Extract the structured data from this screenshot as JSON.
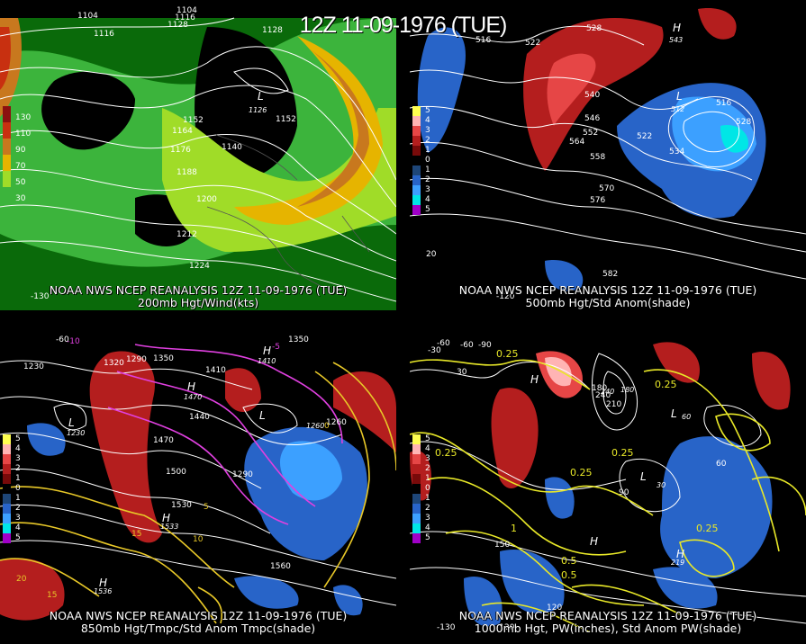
{
  "title": "12Z 11-09-1976 (TUE)",
  "panels": [
    {
      "id": "p200",
      "caption_line1": "NOAA NWS NCEP REANALYSIS 12Z 11-09-1976 (TUE)",
      "caption_line2": "200mb Hgt/Wind(kts)",
      "legend": [
        {
          "label": "130",
          "color": "#8b1010"
        },
        {
          "label": "110",
          "color": "#c83010"
        },
        {
          "label": "90",
          "color": "#c8781e"
        },
        {
          "label": "70",
          "color": "#e6b400"
        },
        {
          "label": "50",
          "color": "#a0dc28"
        },
        {
          "label": "30",
          "color": "#3cb43c"
        }
      ],
      "contour_labels": [
        "1104",
        "1116",
        "1128",
        "1140",
        "1152",
        "1164",
        "1176",
        "1188",
        "1200",
        "1212",
        "1224",
        "1104",
        "1116",
        "1128",
        "1152",
        "1128"
      ],
      "lows": [
        {
          "symbol": "L",
          "value": "1126"
        }
      ]
    },
    {
      "id": "p500",
      "caption_line1": "NOAA NWS NCEP REANALYSIS 12Z 11-09-1976 (TUE)",
      "caption_line2": "500mb Hgt/Std Anom(shade)",
      "legend": [
        {
          "label": "5",
          "color": "#ffff50"
        },
        {
          "label": "4",
          "color": "#ffb4b4"
        },
        {
          "label": "3",
          "color": "#e64646"
        },
        {
          "label": "2",
          "color": "#b41e1e"
        },
        {
          "label": "1",
          "color": "#780a0a"
        },
        {
          "label": "0",
          "color": "#000000"
        },
        {
          "label": "1",
          "color": "#1e4678"
        },
        {
          "label": "2",
          "color": "#2864c8"
        },
        {
          "label": "3",
          "color": "#3ca0ff"
        },
        {
          "label": "4",
          "color": "#00e6e6"
        },
        {
          "label": "5",
          "color": "#a000c8"
        }
      ],
      "contour_labels": [
        "516",
        "522",
        "528",
        "534",
        "540",
        "546",
        "552",
        "558",
        "564",
        "570",
        "576",
        "582",
        "516",
        "522",
        "528"
      ],
      "lows": [
        {
          "symbol": "L",
          "value": "512"
        }
      ],
      "highs": [
        {
          "symbol": "H",
          "value": "543"
        }
      ]
    },
    {
      "id": "p850",
      "caption_line1": "NOAA NWS NCEP REANALYSIS 12Z 11-09-1976 (TUE)",
      "caption_line2": "850mb Hgt/Tmpc/Std Anom Tmpc(shade)",
      "legend": [
        {
          "label": "5",
          "color": "#ffff50"
        },
        {
          "label": "4",
          "color": "#ffb4b4"
        },
        {
          "label": "3",
          "color": "#e64646"
        },
        {
          "label": "2",
          "color": "#b41e1e"
        },
        {
          "label": "1",
          "color": "#780a0a"
        },
        {
          "label": "0",
          "color": "#000000"
        },
        {
          "label": "1",
          "color": "#1e4678"
        },
        {
          "label": "2",
          "color": "#2864c8"
        },
        {
          "label": "3",
          "color": "#3ca0ff"
        },
        {
          "label": "4",
          "color": "#00e6e6"
        },
        {
          "label": "5",
          "color": "#a000c8"
        }
      ],
      "contour_labels": [
        "1230",
        "1290",
        "1320",
        "1350",
        "1410",
        "1440",
        "1470",
        "1500",
        "1530",
        "1560",
        "1260",
        "1290",
        "1350"
      ],
      "temp_labels": [
        "-10",
        "-5",
        "0",
        "5",
        "10",
        "15",
        "20",
        "15"
      ],
      "lows": [
        {
          "symbol": "L",
          "value": "1230"
        },
        {
          "symbol": "L",
          "value": "1260"
        }
      ],
      "highs": [
        {
          "symbol": "H",
          "value": "1470"
        },
        {
          "symbol": "H",
          "value": "1533"
        },
        {
          "symbol": "H",
          "value": "1536"
        },
        {
          "symbol": "H",
          "value": "1410"
        }
      ]
    },
    {
      "id": "p1000",
      "caption_line1": "NOAA NWS NCEP REANALYSIS 12Z 11-09-1976 (TUE)",
      "caption_line2": "1000mb Hgt, PW(inches), Std Anom PW(shade)",
      "legend": [
        {
          "label": "5",
          "color": "#ffff50"
        },
        {
          "label": "4",
          "color": "#ffb4b4"
        },
        {
          "label": "3",
          "color": "#e64646"
        },
        {
          "label": "2",
          "color": "#b41e1e"
        },
        {
          "label": "1",
          "color": "#780a0a"
        },
        {
          "label": "0",
          "color": "#000000"
        },
        {
          "label": "1",
          "color": "#1e4678"
        },
        {
          "label": "2",
          "color": "#2864c8"
        },
        {
          "label": "3",
          "color": "#3ca0ff"
        },
        {
          "label": "4",
          "color": "#00e6e6"
        },
        {
          "label": "5",
          "color": "#a000c8"
        }
      ],
      "contour_labels": [
        "-90",
        "-60",
        "-30",
        "30",
        "60",
        "90",
        "120",
        "150",
        "180",
        "210",
        "240"
      ],
      "pw_labels": [
        "0.25",
        "0.5",
        "1",
        "0.25",
        "0.25",
        "0.25",
        "0.5",
        "0.25",
        "0.25"
      ],
      "lows": [
        {
          "symbol": "L",
          "value": "30"
        },
        {
          "symbol": "L",
          "value": "60"
        }
      ],
      "highs": [
        {
          "symbol": "H",
          "value": "180"
        },
        {
          "symbol": "H",
          "value": "219"
        },
        {
          "symbol": "H",
          "value": "240"
        }
      ]
    }
  ],
  "lon_labels": [
    "-130",
    "-120",
    "-60",
    "-130",
    "-120",
    "-60",
    "20"
  ]
}
